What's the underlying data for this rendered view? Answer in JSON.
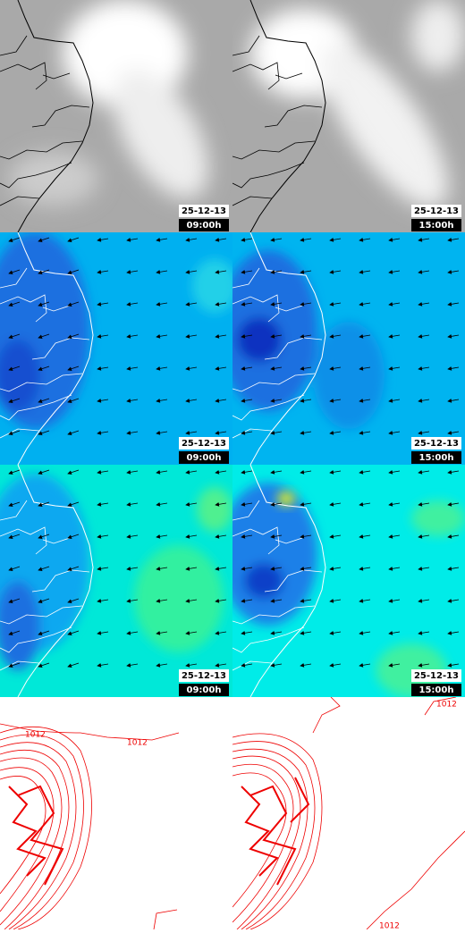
{
  "panels": [
    {
      "date": "25-12-13",
      "time": "09:00h"
    },
    {
      "date": "25-12-13",
      "time": "15:00h"
    },
    {
      "date": "25-12-13",
      "time": "09:00h"
    },
    {
      "date": "25-12-13",
      "time": "15:00h"
    },
    {
      "date": "25-12-13",
      "time": "09:00h"
    },
    {
      "date": "25-12-13",
      "time": "15:00h"
    }
  ],
  "contour_labels": [
    "1012",
    "1012",
    "1012",
    "1012"
  ]
}
